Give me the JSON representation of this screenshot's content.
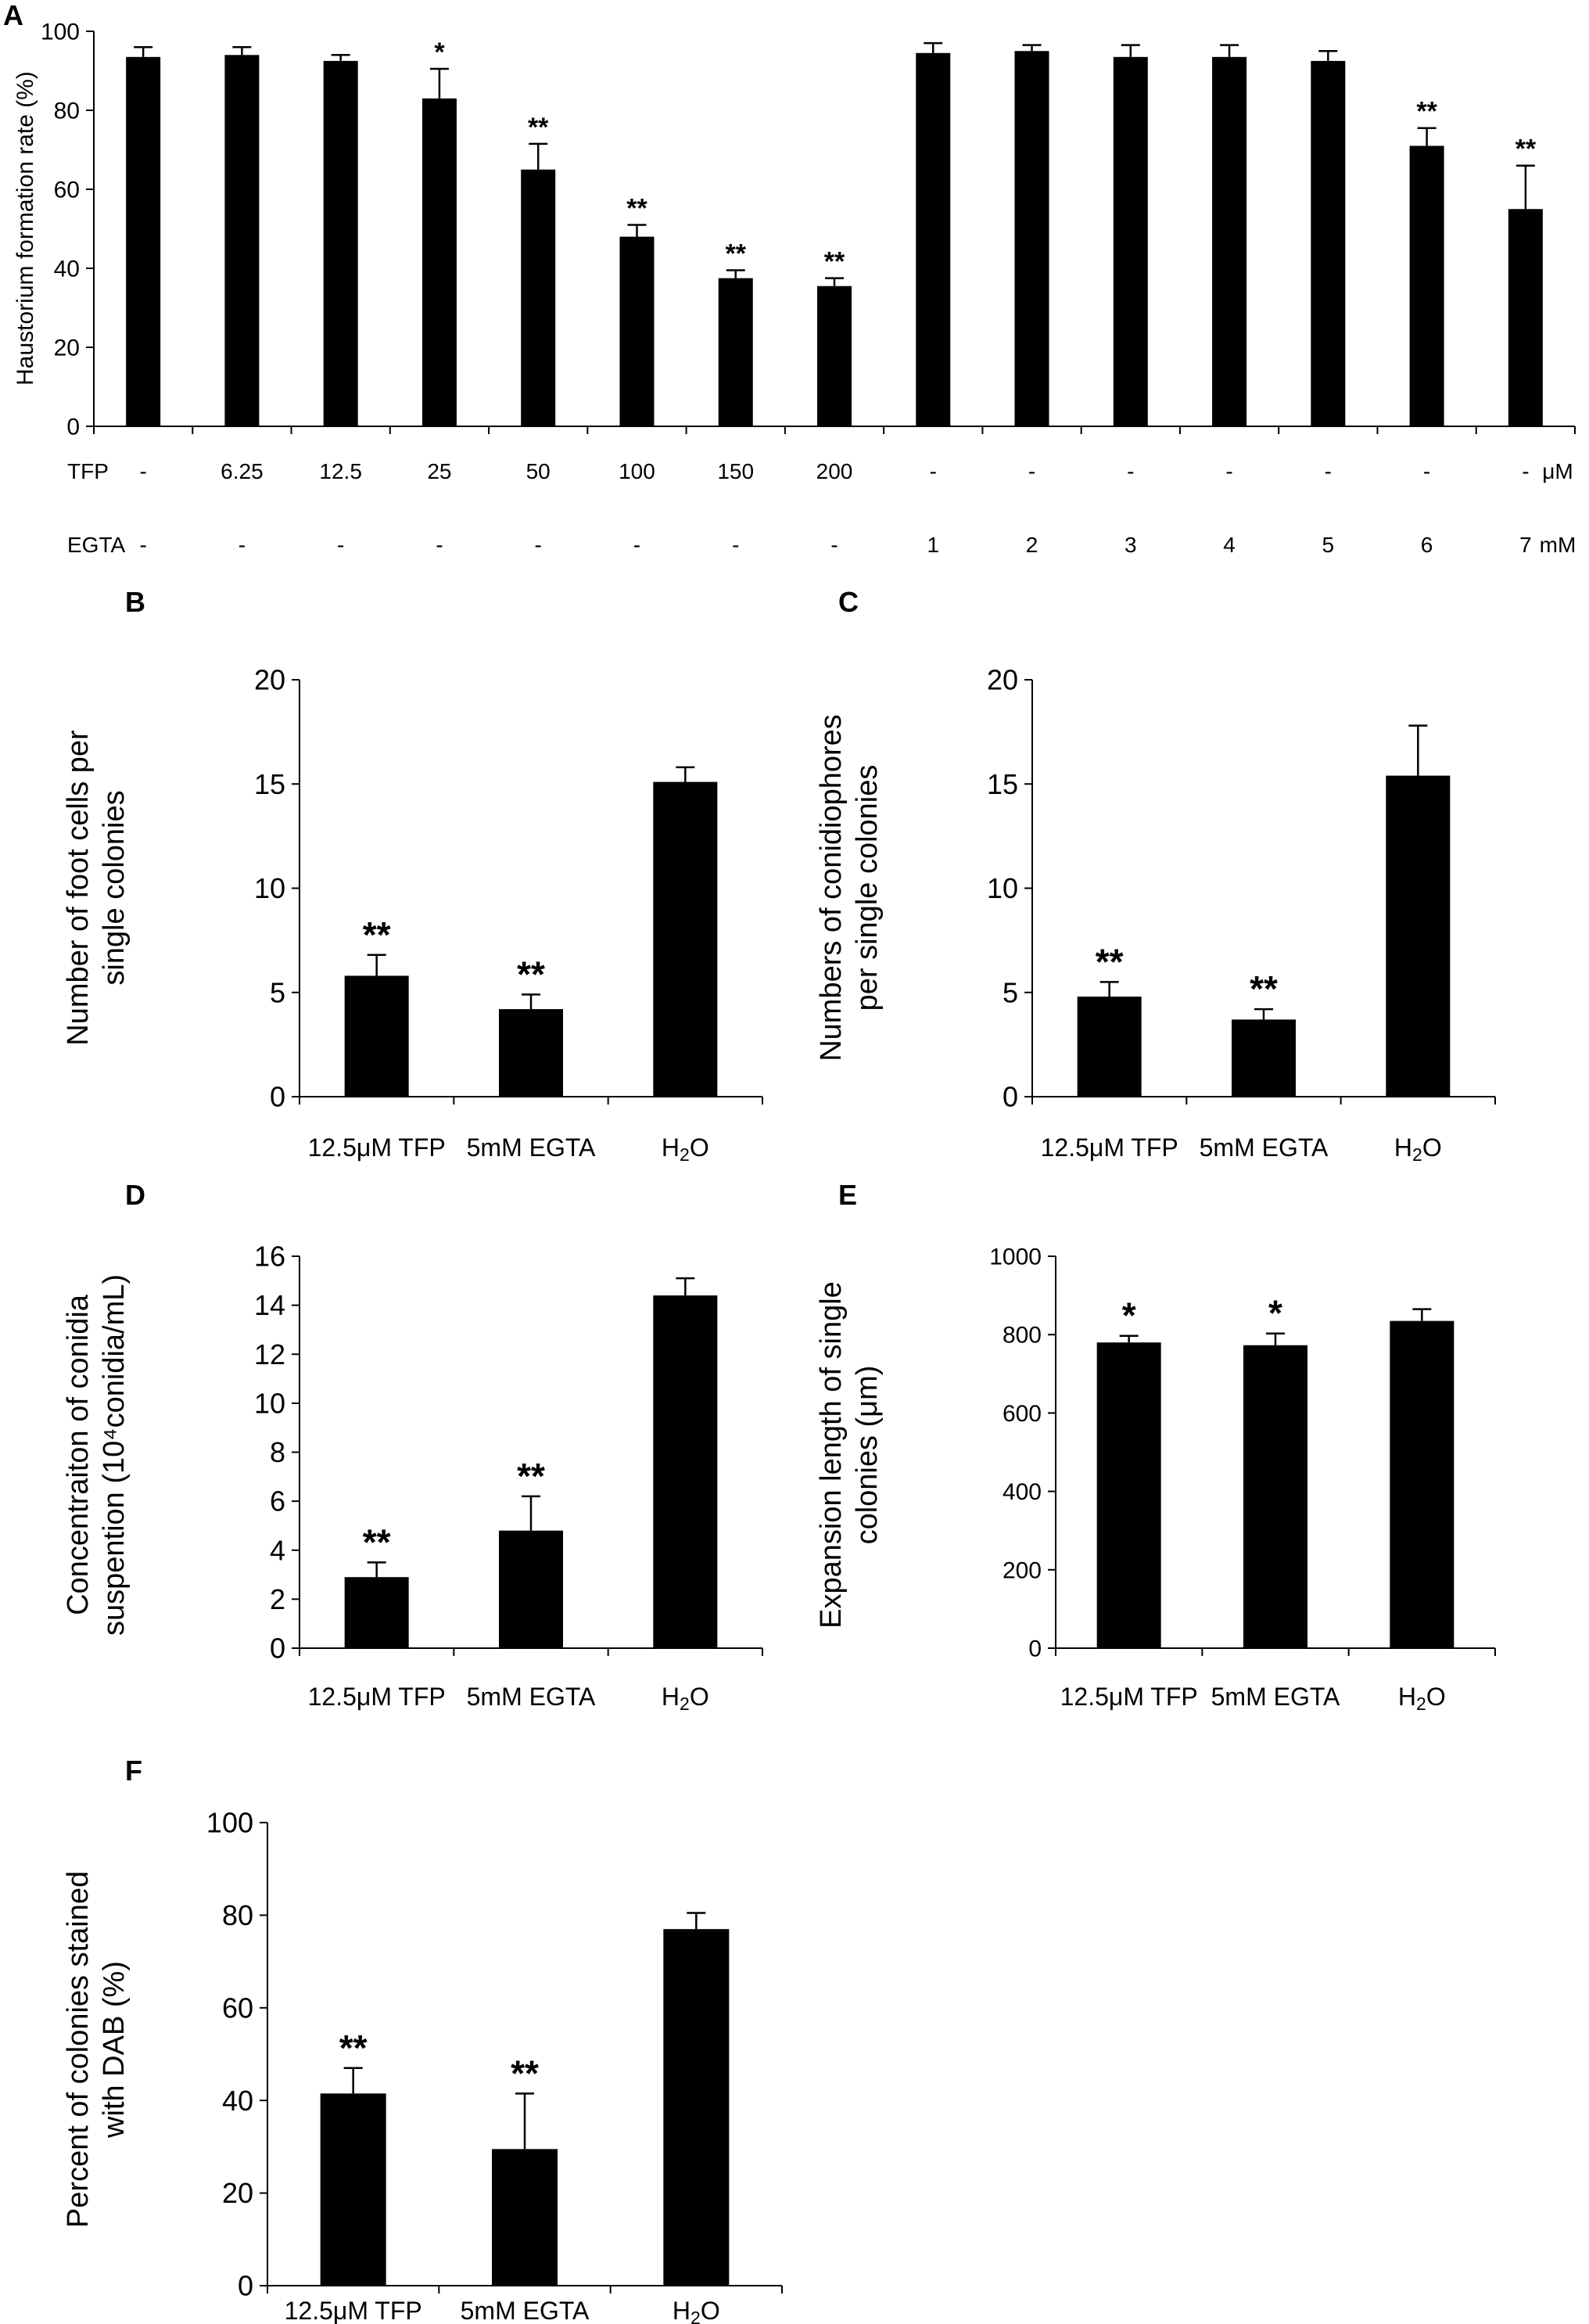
{
  "figure": {
    "color": "#000000",
    "background": "#ffffff"
  },
  "chart_data": [
    {
      "panel": "A",
      "type": "bar",
      "ylabel": "Haustorium formation rate (%)",
      "ylim": [
        0,
        100
      ],
      "yticks": [
        0,
        20,
        40,
        60,
        80,
        100
      ],
      "categories": [
        "-/-",
        "6.25/-",
        "12.5/-",
        "25/-",
        "50/-",
        "100/-",
        "150/-",
        "200/-",
        "-/1",
        "-/2",
        "-/3",
        "-/4",
        "-/5",
        "-/6",
        "-/7"
      ],
      "values": [
        93.5,
        94,
        92.5,
        83,
        65,
        48,
        37.5,
        35.5,
        94.5,
        95,
        93.5,
        93.5,
        92.5,
        71,
        55
      ],
      "errors": [
        2.5,
        2,
        1.5,
        7.5,
        6.5,
        3,
        2,
        2,
        2.5,
        1.5,
        3,
        3,
        2.5,
        4.5,
        11
      ],
      "significance": [
        "",
        "",
        "",
        "*",
        "**",
        "**",
        "**",
        "**",
        "",
        "",
        "",
        "",
        "",
        "**",
        "**"
      ],
      "factors": [
        {
          "name": "TFP",
          "unit": "μM",
          "levels": [
            "-",
            "6.25",
            "12.5",
            "25",
            "50",
            "100",
            "150",
            "200",
            "-",
            "-",
            "-",
            "-",
            "-",
            "-",
            "-"
          ]
        },
        {
          "name": "EGTA",
          "unit": "mM",
          "levels": [
            "-",
            "-",
            "-",
            "-",
            "-",
            "-",
            "-",
            "-",
            "1",
            "2",
            "3",
            "4",
            "5",
            "6",
            "7"
          ]
        }
      ]
    },
    {
      "panel": "B",
      "type": "bar",
      "ylabel_lines": [
        "Number of foot cells per",
        "single colonies"
      ],
      "ylim": [
        0,
        20
      ],
      "yticks": [
        0,
        5,
        10,
        15,
        20
      ],
      "categories": [
        "12.5μM TFP",
        "5mM EGTA",
        "H2O"
      ],
      "values": [
        5.8,
        4.2,
        15.1
      ],
      "errors": [
        1.0,
        0.7,
        0.7
      ],
      "significance": [
        "**",
        "**",
        ""
      ]
    },
    {
      "panel": "C",
      "type": "bar",
      "ylabel_lines": [
        "Numbers of conidiophores",
        "per single colonies"
      ],
      "ylim": [
        0,
        20
      ],
      "yticks": [
        0,
        5,
        10,
        15,
        20
      ],
      "categories": [
        "12.5μM TFP",
        "5mM EGTA",
        "H2O"
      ],
      "values": [
        4.8,
        3.7,
        15.4
      ],
      "errors": [
        0.7,
        0.5,
        2.4
      ],
      "significance": [
        "**",
        "**",
        ""
      ]
    },
    {
      "panel": "D",
      "type": "bar",
      "ylabel_lines": [
        "Concentraiton of conidia",
        "suspention (10⁴conidia/mL)"
      ],
      "ylim": [
        0,
        16
      ],
      "yticks": [
        0,
        2,
        4,
        6,
        8,
        10,
        12,
        14,
        16
      ],
      "categories": [
        "12.5μM TFP",
        "5mM EGTA",
        "H2O"
      ],
      "values": [
        2.9,
        4.8,
        14.4
      ],
      "errors": [
        0.6,
        1.4,
        0.7
      ],
      "significance": [
        "**",
        "**",
        ""
      ]
    },
    {
      "panel": "E",
      "type": "bar",
      "ylabel_lines": [
        "Expansion length of single",
        "colonies (μm)"
      ],
      "ylim": [
        0,
        1000
      ],
      "yticks": [
        0,
        200,
        400,
        600,
        800,
        1000
      ],
      "categories": [
        "12.5μM TFP",
        "5mM EGTA",
        "H2O"
      ],
      "values": [
        780,
        773,
        835
      ],
      "errors": [
        17,
        30,
        30
      ],
      "significance": [
        "*",
        "*",
        ""
      ]
    },
    {
      "panel": "F",
      "type": "bar",
      "ylabel_lines": [
        "Percent of colonies stained",
        "with DAB (%)"
      ],
      "ylim": [
        0,
        100
      ],
      "yticks": [
        0,
        20,
        40,
        60,
        80,
        100
      ],
      "categories": [
        "12.5μM TFP",
        "5mM EGTA",
        "H2O"
      ],
      "values": [
        41.5,
        29.5,
        77
      ],
      "errors": [
        5.5,
        12,
        3.5
      ],
      "significance": [
        "**",
        "**",
        ""
      ]
    }
  ]
}
